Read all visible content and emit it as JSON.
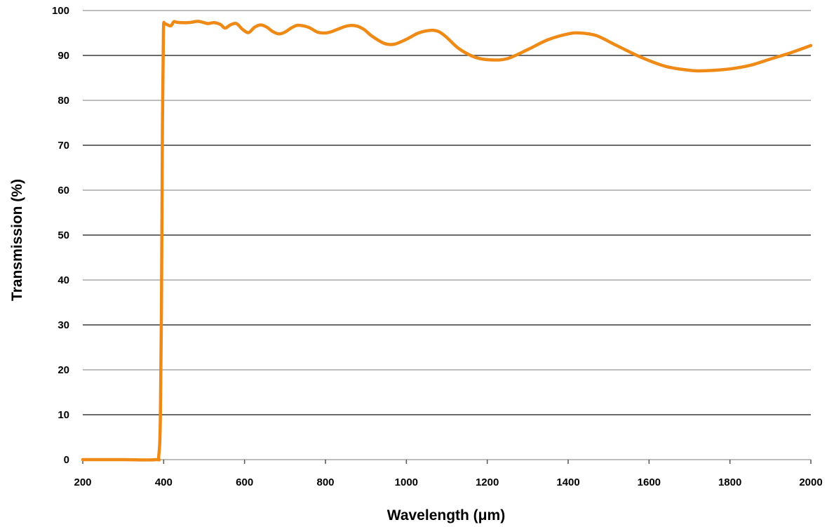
{
  "chart_data": {
    "type": "line",
    "title": "",
    "xlabel": "Wavelength (μm)",
    "ylabel": "Transmission (%)",
    "xlim": [
      200,
      2000
    ],
    "ylim": [
      0,
      100
    ],
    "x_ticks": [
      "200",
      "400",
      "600",
      "800",
      "1000",
      "1200",
      "1400",
      "1600",
      "1800",
      "2000"
    ],
    "y_ticks": [
      "0",
      "10",
      "20",
      "30",
      "40",
      "50",
      "60",
      "70",
      "80",
      "90",
      "100"
    ],
    "grid": "horizontal",
    "legend": "none",
    "series": [
      {
        "color": "#ef8a17",
        "x": [
          200,
          300,
          380,
          388,
          392,
          395,
          397,
          399,
          400,
          402,
          405,
          410,
          418,
          425,
          432,
          445,
          460,
          470,
          485,
          500,
          510,
          525,
          540,
          552,
          565,
          580,
          595,
          610,
          625,
          640,
          655,
          670,
          685,
          700,
          715,
          730,
          745,
          760,
          780,
          800,
          815,
          835,
          855,
          875,
          895,
          915,
          945,
          970,
          1000,
          1030,
          1060,
          1080,
          1100,
          1130,
          1170,
          1210,
          1250,
          1300,
          1350,
          1400,
          1430,
          1470,
          1520,
          1580,
          1640,
          1700,
          1740,
          1800,
          1850,
          1900,
          1950,
          2000
        ],
        "y": [
          0,
          0,
          0,
          1,
          10,
          40,
          75,
          92,
          97,
          97,
          97,
          96.8,
          96.6,
          97.5,
          97.4,
          97.3,
          97.3,
          97.4,
          97.6,
          97.3,
          97.1,
          97.3,
          96.9,
          96.1,
          96.8,
          97.1,
          95.8,
          95.1,
          96.3,
          96.8,
          96.3,
          95.3,
          94.8,
          95.2,
          96.1,
          96.7,
          96.6,
          96.2,
          95.2,
          95.0,
          95.3,
          96.0,
          96.6,
          96.6,
          95.8,
          94.3,
          92.7,
          92.5,
          93.6,
          95.0,
          95.6,
          95.3,
          94.0,
          91.5,
          89.6,
          89.0,
          89.3,
          91.3,
          93.5,
          94.8,
          95.0,
          94.4,
          92.2,
          89.6,
          87.6,
          86.7,
          86.6,
          87.0,
          87.8,
          89.2,
          90.6,
          92.2
        ]
      }
    ]
  }
}
